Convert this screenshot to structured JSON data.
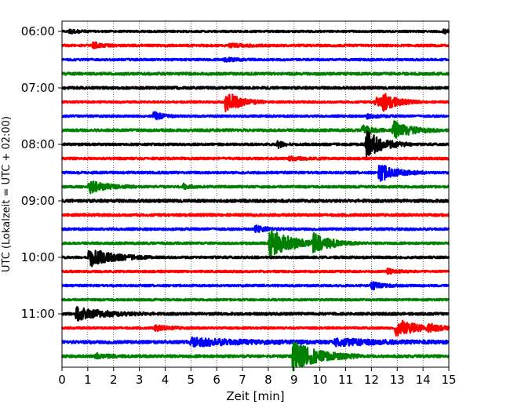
{
  "chart_data": {
    "type": "line",
    "title": "",
    "xlabel": "Zeit  [min]",
    "ylabel": "UTC (Lokalzeit = UTC + 02:00)",
    "xlim": [
      0,
      15
    ],
    "x_ticks": [
      "0",
      "1",
      "2",
      "3",
      "4",
      "5",
      "6",
      "7",
      "8",
      "9",
      "10",
      "11",
      "12",
      "13",
      "14",
      "15"
    ],
    "y_tick_labels": [
      "06:00",
      "07:00",
      "08:00",
      "09:00",
      "10:00",
      "11:00"
    ],
    "grid": "vertical dotted",
    "trace_colors": [
      "#000000",
      "#ff0000",
      "#0000ff",
      "#008000"
    ],
    "row_interval_min": 15,
    "rows": [
      {
        "start": "06:00",
        "color": "#000000",
        "noise": 0.18,
        "events": [
          {
            "t": 0.3,
            "a": 0.4,
            "d": 0.3
          },
          {
            "t": 14.8,
            "a": 0.4,
            "d": 0.3
          }
        ]
      },
      {
        "start": "06:15",
        "color": "#ff0000",
        "noise": 0.22,
        "events": [
          {
            "t": 1.2,
            "a": 0.6,
            "d": 0.3
          },
          {
            "t": 6.5,
            "a": 0.3,
            "d": 0.5
          }
        ]
      },
      {
        "start": "06:30",
        "color": "#0000ff",
        "noise": 0.2,
        "events": [
          {
            "t": 6.3,
            "a": 0.35,
            "d": 0.4
          }
        ]
      },
      {
        "start": "06:45",
        "color": "#008000",
        "noise": 0.25,
        "events": []
      },
      {
        "start": "07:00",
        "color": "#000000",
        "noise": 0.25,
        "events": []
      },
      {
        "start": "07:15",
        "color": "#ff0000",
        "noise": 0.2,
        "events": [
          {
            "t": 6.35,
            "a": 2.2,
            "d": 0.5
          },
          {
            "t": 12.15,
            "a": 1.0,
            "d": 0.5
          },
          {
            "t": 12.45,
            "a": 1.2,
            "d": 0.5
          }
        ]
      },
      {
        "start": "07:30",
        "color": "#0000ff",
        "noise": 0.2,
        "events": [
          {
            "t": 3.55,
            "a": 0.8,
            "d": 0.3
          },
          {
            "t": 11.8,
            "a": 0.4,
            "d": 0.4
          }
        ]
      },
      {
        "start": "07:45",
        "color": "#008000",
        "noise": 0.25,
        "events": [
          {
            "t": 11.65,
            "a": 1.0,
            "d": 0.3
          },
          {
            "t": 12.85,
            "a": 1.8,
            "d": 0.6
          }
        ]
      },
      {
        "start": "08:00",
        "color": "#000000",
        "noise": 0.22,
        "events": [
          {
            "t": 8.35,
            "a": 0.8,
            "d": 0.2
          },
          {
            "t": 11.8,
            "a": 2.6,
            "d": 0.6
          }
        ]
      },
      {
        "start": "08:15",
        "color": "#ff0000",
        "noise": 0.22,
        "events": [
          {
            "t": 8.8,
            "a": 0.3,
            "d": 0.5
          }
        ]
      },
      {
        "start": "08:30",
        "color": "#0000ff",
        "noise": 0.22,
        "events": [
          {
            "t": 12.3,
            "a": 1.7,
            "d": 0.6
          }
        ]
      },
      {
        "start": "08:45",
        "color": "#008000",
        "noise": 0.22,
        "events": [
          {
            "t": 1.05,
            "a": 1.2,
            "d": 0.6
          },
          {
            "t": 4.7,
            "a": 0.5,
            "d": 0.2
          }
        ]
      },
      {
        "start": "09:00",
        "color": "#000000",
        "noise": 0.28,
        "events": []
      },
      {
        "start": "09:15",
        "color": "#ff0000",
        "noise": 0.25,
        "events": []
      },
      {
        "start": "09:30",
        "color": "#0000ff",
        "noise": 0.22,
        "events": [
          {
            "t": 7.5,
            "a": 0.6,
            "d": 0.4
          }
        ]
      },
      {
        "start": "09:45",
        "color": "#008000",
        "noise": 0.22,
        "events": [
          {
            "t": 8.05,
            "a": 2.6,
            "d": 0.9
          },
          {
            "t": 9.75,
            "a": 1.5,
            "d": 0.6
          }
        ]
      },
      {
        "start": "10:00",
        "color": "#000000",
        "noise": 0.22,
        "events": [
          {
            "t": 1.05,
            "a": 1.8,
            "d": 0.8
          }
        ]
      },
      {
        "start": "10:15",
        "color": "#ff0000",
        "noise": 0.2,
        "events": [
          {
            "t": 12.6,
            "a": 0.5,
            "d": 0.4
          }
        ]
      },
      {
        "start": "10:30",
        "color": "#0000ff",
        "noise": 0.2,
        "events": [
          {
            "t": 12.0,
            "a": 0.7,
            "d": 0.4
          }
        ]
      },
      {
        "start": "10:45",
        "color": "#008000",
        "noise": 0.2,
        "events": []
      },
      {
        "start": "11:00",
        "color": "#000000",
        "noise": 0.25,
        "events": [
          {
            "t": 0.55,
            "a": 1.2,
            "d": 1.0
          }
        ]
      },
      {
        "start": "11:15",
        "color": "#ff0000",
        "noise": 0.2,
        "events": [
          {
            "t": 3.6,
            "a": 0.5,
            "d": 0.5
          },
          {
            "t": 12.95,
            "a": 1.8,
            "d": 0.7
          },
          {
            "t": 14.2,
            "a": 0.6,
            "d": 0.4
          }
        ]
      },
      {
        "start": "11:30",
        "color": "#0000ff",
        "noise": 0.28,
        "events": [
          {
            "t": 5.0,
            "a": 0.7,
            "d": 2.0
          },
          {
            "t": 10.6,
            "a": 0.6,
            "d": 1.8
          }
        ]
      },
      {
        "start": "11:45",
        "color": "#008000",
        "noise": 0.25,
        "events": [
          {
            "t": 8.95,
            "a": 2.8,
            "d": 0.9
          },
          {
            "t": 1.3,
            "a": 0.5,
            "d": 0.4
          }
        ]
      }
    ]
  }
}
